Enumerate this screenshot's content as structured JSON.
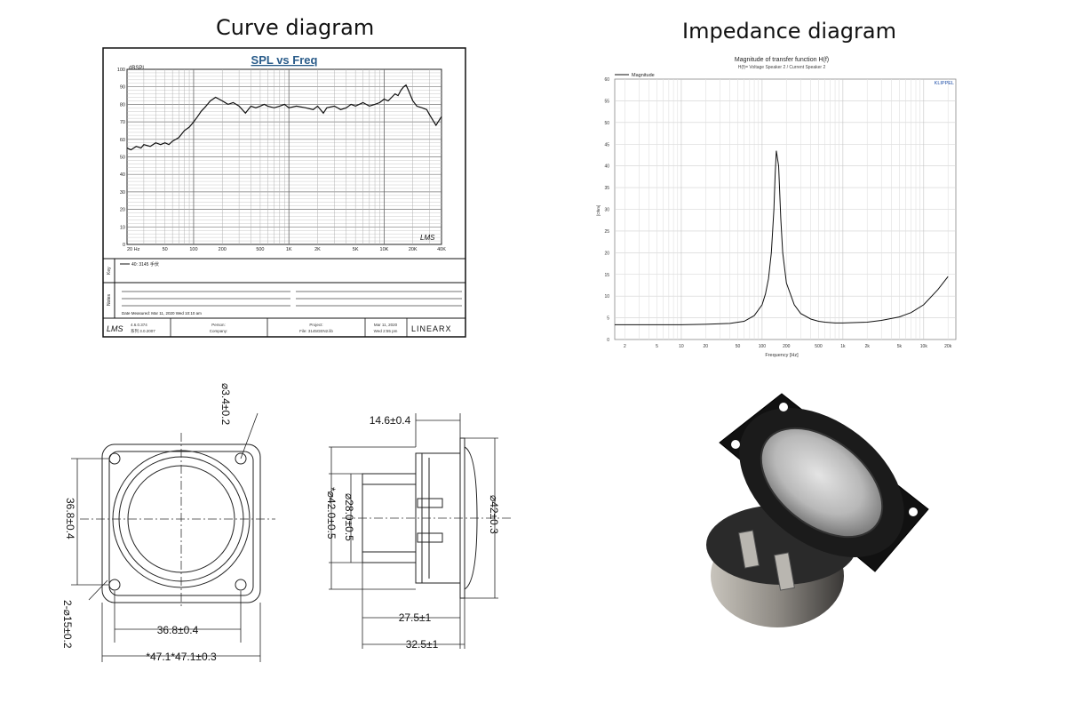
{
  "headings": {
    "curve": "Curve diagram",
    "impedance": "Impedance diagram"
  },
  "spl_chart": {
    "title": "SPL vs Freq",
    "y_unit": "dBSPL",
    "y_ticks": [
      "100",
      "90",
      "80",
      "70",
      "60",
      "50",
      "40",
      "30",
      "20",
      "10",
      "0"
    ],
    "x_ticks": [
      "20 Hz",
      "50",
      "100",
      "200",
      "500",
      "1K",
      "2K",
      "5K",
      "10K",
      "20K",
      "40K"
    ],
    "logo": "LMS",
    "legend_side_label": "Key",
    "legend_entry": "40: 3145 手伏",
    "notes_side_label": "Notes",
    "date_measured": "Date Measured: Mar 11, 2020  Wed 10:10 am",
    "footer": {
      "version": "4.6.0.374",
      "version2": "系列 3.0.2007",
      "person_label": "Person:",
      "company_label": "Company:",
      "project_label": "Project:",
      "file_label": "File: 3145GEN2.lib",
      "date": "Mar 11, 2020",
      "time": "Wed  2:55 pm",
      "brand": "LINEARX"
    }
  },
  "imp_chart": {
    "title": "Magnitude of transfer function H(f)",
    "subtitle": "H(f)= Voltage Speaker 2 / Current Speaker 2",
    "legend": "Magnitude",
    "brand": "KLIPPEL",
    "ylabel": "[Ohm]",
    "xlabel": "Frequency [Hz]",
    "y_ticks": [
      "60",
      "55",
      "50",
      "45",
      "40",
      "35",
      "30",
      "25",
      "20",
      "15",
      "10",
      "5",
      "0"
    ],
    "x_ticks": [
      "2",
      "5",
      "10",
      "20",
      "50",
      "100",
      "200",
      "500",
      "1k",
      "2k",
      "5k",
      "10k",
      "20k"
    ]
  },
  "front_view": {
    "dim_hole": "⌀3.4±0.2",
    "dim_height": "36.8±0.4",
    "dim_width": "36.8±0.4",
    "dim_overall": "*47.1*47.1±0.3",
    "dim_holes": "2-⌀15±0.2"
  },
  "side_view": {
    "dim_top": "14.6±0.4",
    "dim_inner_dia": "⌀28.0±0.5",
    "dim_mid_dia": "*⌀42.0±0.5",
    "dim_outer_dia": "⌀42±0.3",
    "dim_depth1": "27.5±1",
    "dim_depth2": "32.5±1"
  },
  "chart_data": [
    {
      "type": "line",
      "title": "SPL vs Freq",
      "ylabel": "dBSPL",
      "xlabel": "",
      "x_scale": "log",
      "xlim": [
        20,
        40000
      ],
      "ylim": [
        0,
        100
      ],
      "grid": true,
      "series": [
        {
          "name": "40: 3145 手伏",
          "x": [
            20,
            22,
            25,
            28,
            30,
            35,
            40,
            45,
            50,
            55,
            60,
            70,
            80,
            90,
            100,
            110,
            120,
            130,
            140,
            150,
            170,
            200,
            230,
            260,
            300,
            350,
            400,
            450,
            500,
            550,
            600,
            700,
            800,
            900,
            1000,
            1200,
            1500,
            1800,
            2000,
            2300,
            2500,
            3000,
            3500,
            4000,
            4500,
            5000,
            6000,
            7000,
            8000,
            9000,
            10000,
            11000,
            12000,
            13000,
            14000,
            15000,
            16000,
            17000,
            18000,
            20000,
            22000,
            25000,
            28000,
            30000,
            35000,
            40000
          ],
          "values": [
            55,
            54,
            56,
            55,
            57,
            56,
            58,
            57,
            58,
            57,
            59,
            61,
            65,
            67,
            70,
            73,
            76,
            78,
            80,
            82,
            84,
            82,
            80,
            81,
            79,
            75,
            79,
            78,
            79,
            80,
            79,
            78,
            79,
            80,
            78,
            79,
            78,
            77,
            79,
            75,
            78,
            79,
            77,
            78,
            80,
            79,
            81,
            79,
            80,
            81,
            83,
            82,
            84,
            86,
            85,
            88,
            90,
            91,
            88,
            82,
            79,
            78,
            77,
            74,
            68,
            73
          ]
        }
      ]
    },
    {
      "type": "line",
      "title": "Magnitude of transfer function H(f)",
      "ylabel": "[Ohm]",
      "xlabel": "Frequency [Hz]",
      "x_scale": "log",
      "xlim": [
        1.5,
        25000
      ],
      "ylim": [
        0,
        60
      ],
      "grid": true,
      "series": [
        {
          "name": "Magnitude",
          "x": [
            1.5,
            5,
            10,
            20,
            40,
            60,
            80,
            100,
            110,
            120,
            130,
            140,
            145,
            150,
            160,
            170,
            180,
            200,
            250,
            300,
            400,
            500,
            600,
            800,
            1000,
            2000,
            3000,
            5000,
            7000,
            10000,
            15000,
            20000
          ],
          "values": [
            3.4,
            3.4,
            3.4,
            3.5,
            3.7,
            4.2,
            5.5,
            8,
            10.5,
            14,
            20,
            30,
            38,
            43.5,
            40,
            28,
            20,
            13,
            8,
            6,
            4.7,
            4.2,
            4,
            3.8,
            3.8,
            4,
            4.4,
            5.2,
            6.2,
            8,
            11.5,
            14.5
          ]
        }
      ]
    }
  ]
}
